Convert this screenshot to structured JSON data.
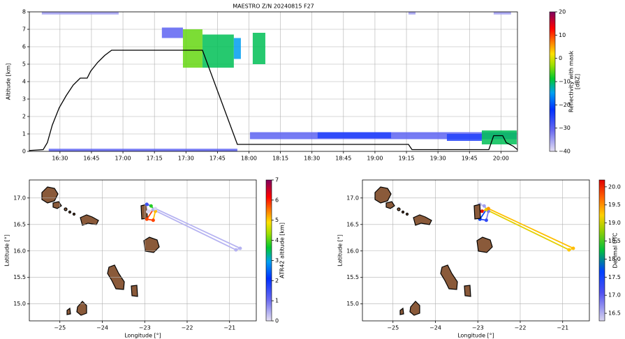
{
  "chart_data": [
    {
      "type": "profile",
      "title": "MAESTRO Z/N 20240815 F27",
      "ylabel": "Altitude [km]",
      "cbar_label": [
        "Reflectivity with mask",
        "[dBZ]"
      ],
      "xlim": [
        16.257,
        20.131
      ],
      "ylim": [
        0,
        8
      ],
      "clim": [
        -40,
        20
      ],
      "xticks": [
        {
          "value": 16.5,
          "label": "16:30"
        },
        {
          "value": 16.75,
          "label": "16:45"
        },
        {
          "value": 17,
          "label": "17:00"
        },
        {
          "value": 17.25,
          "label": "17:15"
        },
        {
          "value": 17.5,
          "label": "17:30"
        },
        {
          "value": 17.75,
          "label": "17:45"
        },
        {
          "value": 18,
          "label": "18:00"
        },
        {
          "value": 18.25,
          "label": "18:15"
        },
        {
          "value": 18.5,
          "label": "18:30"
        },
        {
          "value": 18.75,
          "label": "18:45"
        },
        {
          "value": 19,
          "label": "19:00"
        },
        {
          "value": 19.25,
          "label": "19:15"
        },
        {
          "value": 19.5,
          "label": "19:30"
        },
        {
          "value": 19.75,
          "label": "19:45"
        },
        {
          "value": 20,
          "label": "20:00"
        }
      ],
      "yticks": [
        0,
        1,
        2,
        3,
        4,
        5,
        6,
        7,
        8
      ],
      "cticks": [
        {
          "value": -40,
          "label": "−40"
        },
        {
          "value": -30,
          "label": "−30"
        },
        {
          "value": -20,
          "label": "−20"
        },
        {
          "value": -10,
          "label": "−10"
        },
        0,
        10,
        20
      ],
      "grid": true,
      "flight": {
        "color": "#000000",
        "x": [
          16.256,
          16.367,
          16.4,
          16.439,
          16.494,
          16.55,
          16.605,
          16.661,
          16.716,
          16.744,
          16.799,
          16.855,
          16.91,
          17.631,
          17.908,
          19.266,
          19.294,
          19.904,
          19.942,
          20.014,
          20.042,
          20.097,
          20.131
        ],
        "y": [
          0.05,
          0.1,
          0.5,
          1.5,
          2.5,
          3.2,
          3.8,
          4.2,
          4.2,
          4.6,
          5.1,
          5.5,
          5.8,
          5.8,
          0.4,
          0.4,
          0.1,
          0.1,
          0.9,
          0.9,
          0.5,
          0.3,
          0.1
        ]
      },
      "echoes": {
        "t0": [
          17.309,
          17.476,
          17.631,
          17.88,
          18.03,
          18.008,
          18.545,
          19.571,
          19.848,
          16.411,
          16.356,
          19.266,
          19.942
        ],
        "t1": [
          17.476,
          17.631,
          17.88,
          17.936,
          18.13,
          20.125,
          19.128,
          19.848,
          20.125,
          17.908,
          16.966,
          19.322,
          20.08
        ],
        "z0": [
          6.5,
          4.8,
          4.8,
          5.3,
          5.0,
          0.7,
          0.75,
          0.6,
          0.4,
          0.0,
          7.85,
          7.85,
          7.85
        ],
        "z1": [
          7.1,
          7.0,
          6.7,
          6.5,
          6.8,
          1.1,
          1.1,
          1.0,
          1.2,
          0.15,
          8.0,
          8.0,
          8.0
        ],
        "dbz": [
          -30,
          -5,
          -10,
          -15,
          -10,
          -30,
          -25,
          -25,
          -10,
          -30,
          -35,
          -35,
          -35
        ]
      }
    },
    {
      "type": "map",
      "xlabel": "Longitude [°]",
      "ylabel": "Latitude [°]",
      "cbar_label": "ATR42 altitude [km]",
      "xlim": [
        -25.72,
        -20.37
      ],
      "ylim": [
        14.68,
        17.34
      ],
      "clim": [
        0,
        7
      ],
      "xticks": [
        {
          "value": -25,
          "label": "−25"
        },
        {
          "value": -24,
          "label": "−24"
        },
        {
          "value": -23,
          "label": "−23"
        },
        {
          "value": -22,
          "label": "−22"
        },
        {
          "value": -21,
          "label": "−21"
        }
      ],
      "yticks": [
        {
          "value": 15,
          "label": "15.0"
        },
        15.5,
        {
          "value": 16,
          "label": "16.0"
        },
        16.5,
        {
          "value": 17,
          "label": "17.0"
        }
      ],
      "cticks": [
        0,
        1,
        2,
        3,
        4,
        5,
        6,
        7
      ],
      "grid": true,
      "track": {
        "lon": [
          -22.93,
          -22.95,
          -22.85,
          -22.75,
          -22.8,
          -22.95,
          -22.8,
          -20.85,
          -20.75,
          -22.75,
          -22.9
        ],
        "lat": [
          16.74,
          16.88,
          16.85,
          16.75,
          16.58,
          16.6,
          16.78,
          16.02,
          16.05,
          16.8,
          16.75
        ],
        "c": [
          0.05,
          1.5,
          3.8,
          5.1,
          5.8,
          5.8,
          0.4,
          0.4,
          0.4,
          0.1,
          0.1
        ]
      }
    },
    {
      "type": "map",
      "xlabel": "Longitude [°]",
      "ylabel": "Latitude [°]",
      "cbar_label": "Decimal UTC",
      "xlim": [
        -25.72,
        -20.37
      ],
      "ylim": [
        14.68,
        17.34
      ],
      "clim": [
        16.29,
        20.19
      ],
      "xticks": [
        {
          "value": -25,
          "label": "−25"
        },
        {
          "value": -24,
          "label": "−24"
        },
        {
          "value": -23,
          "label": "−23"
        },
        {
          "value": -22,
          "label": "−22"
        },
        {
          "value": -21,
          "label": "−21"
        }
      ],
      "yticks": [
        {
          "value": 15,
          "label": "15.0"
        },
        15.5,
        {
          "value": 16,
          "label": "16.0"
        },
        16.5,
        {
          "value": 17,
          "label": "17.0"
        }
      ],
      "cticks": [
        16.5,
        {
          "value": 17,
          "label": "17.0"
        },
        17.5,
        {
          "value": 18,
          "label": "18.0"
        },
        18.5,
        {
          "value": 19,
          "label": "19.0"
        },
        19.5,
        {
          "value": 20,
          "label": "20.0"
        }
      ],
      "grid": true,
      "track": {
        "lon": [
          -22.93,
          -22.95,
          -22.85,
          -22.75,
          -22.8,
          -22.95,
          -22.8,
          -20.85,
          -20.75,
          -22.75,
          -22.9
        ],
        "lat": [
          16.74,
          16.88,
          16.85,
          16.75,
          16.58,
          16.6,
          16.78,
          16.02,
          16.05,
          16.8,
          16.75
        ],
        "c": [
          16.26,
          16.45,
          16.6,
          16.8,
          17.3,
          17.63,
          19.1,
          19.25,
          19.3,
          19.45,
          20.13
        ]
      }
    }
  ]
}
